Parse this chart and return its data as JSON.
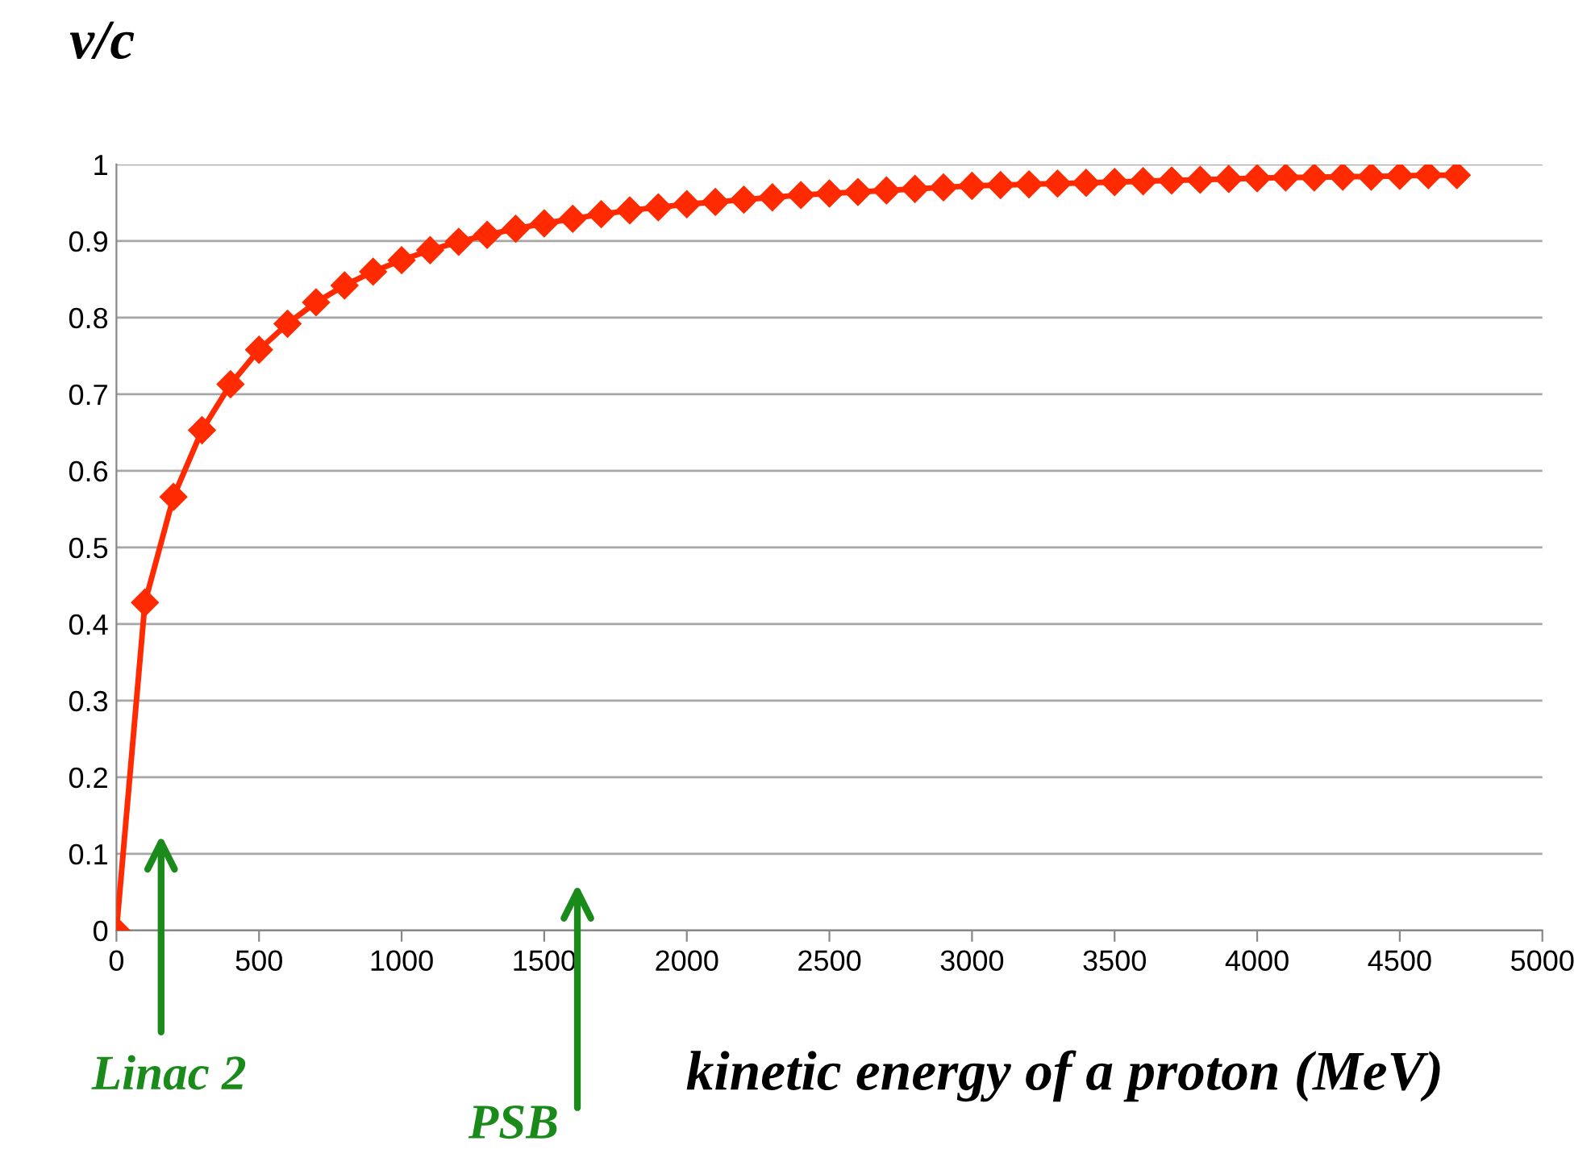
{
  "chart_data": {
    "type": "line",
    "xlabel": "kinetic energy of a proton (MeV)",
    "ylabel": "v/c",
    "x": [
      0,
      100,
      200,
      300,
      400,
      500,
      600,
      700,
      800,
      900,
      1000,
      1100,
      1200,
      1300,
      1400,
      1500,
      1600,
      1700,
      1800,
      1900,
      2000,
      2100,
      2200,
      2300,
      2400,
      2500,
      2600,
      2700,
      2800,
      2900,
      3000,
      3100,
      3200,
      3300,
      3400,
      3500,
      3600,
      3700,
      3800,
      3900,
      4000,
      4100,
      4200,
      4300,
      4400,
      4500,
      4600,
      4700
    ],
    "series": [
      {
        "color": "#ff2a00",
        "values": [
          0,
          0.428,
          0.566,
          0.653,
          0.713,
          0.758,
          0.792,
          0.82,
          0.842,
          0.86,
          0.875,
          0.888,
          0.899,
          0.908,
          0.916,
          0.923,
          0.929,
          0.935,
          0.94,
          0.944,
          0.948,
          0.951,
          0.954,
          0.957,
          0.96,
          0.962,
          0.964,
          0.966,
          0.968,
          0.97,
          0.972,
          0.973,
          0.974,
          0.975,
          0.976,
          0.977,
          0.978,
          0.979,
          0.98,
          0.981,
          0.982,
          0.983,
          0.983,
          0.984,
          0.984,
          0.985,
          0.986,
          0.986
        ]
      }
    ],
    "marker": "diamond",
    "line_style": "solid",
    "grid": "y",
    "legend": false,
    "xlim": [
      0,
      5000
    ],
    "xticks": [
      0,
      500,
      1000,
      1500,
      2000,
      2500,
      3000,
      3500,
      4000,
      4500,
      5000
    ],
    "ylim": [
      0,
      1
    ],
    "yticks": [
      0,
      0.1,
      0.2,
      0.3,
      0.4,
      0.5,
      0.6,
      0.7,
      0.8,
      0.9,
      1
    ],
    "annotations": [
      "Linac 2",
      "PSB"
    ]
  }
}
